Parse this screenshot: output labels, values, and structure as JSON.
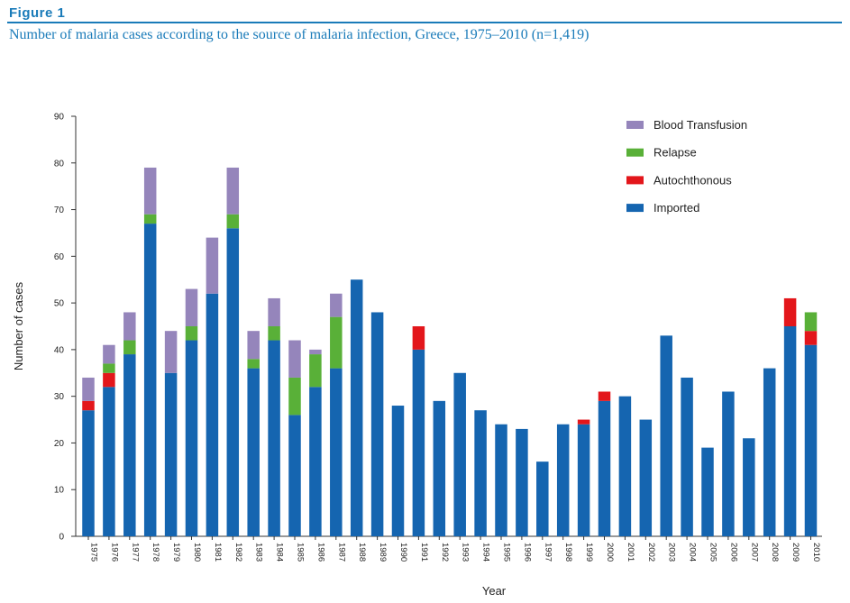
{
  "figure": {
    "label": "Figure 1",
    "title": "Number of malaria cases according to the source of malaria infection, Greece, 1975–2010 (n=1,419)"
  },
  "chart_data": {
    "type": "bar",
    "stacked": true,
    "xlabel": "Year",
    "ylabel": "Number of cases",
    "ylim": [
      0,
      90
    ],
    "yticks": [
      0,
      10,
      20,
      30,
      40,
      50,
      60,
      70,
      80,
      90
    ],
    "grid": false,
    "legend_position": "top-right",
    "categories": [
      "1975",
      "1976",
      "1977",
      "1978",
      "1979",
      "1980",
      "1981",
      "1982",
      "1983",
      "1984",
      "1985",
      "1986",
      "1987",
      "1988",
      "1989",
      "1990",
      "1991",
      "1992",
      "1993",
      "1994",
      "1995",
      "1996",
      "1997",
      "1998",
      "1999",
      "2000",
      "2001",
      "2002",
      "2003",
      "2004",
      "2005",
      "2006",
      "2007",
      "2008",
      "2009",
      "2010"
    ],
    "series": [
      {
        "name": "Imported",
        "color": "#1565b0",
        "values": [
          27,
          32,
          39,
          67,
          35,
          42,
          52,
          66,
          36,
          42,
          26,
          32,
          36,
          55,
          48,
          28,
          40,
          29,
          35,
          27,
          24,
          23,
          16,
          24,
          24,
          29,
          30,
          25,
          43,
          34,
          19,
          31,
          21,
          36,
          45,
          41
        ]
      },
      {
        "name": "Autochthonous",
        "color": "#e3161b",
        "values": [
          2,
          3,
          0,
          0,
          0,
          0,
          0,
          0,
          0,
          0,
          0,
          0,
          0,
          0,
          0,
          0,
          5,
          0,
          0,
          0,
          0,
          0,
          0,
          0,
          1,
          2,
          0,
          0,
          0,
          0,
          0,
          0,
          0,
          0,
          6,
          3
        ]
      },
      {
        "name": "Relapse",
        "color": "#59b038",
        "values": [
          0,
          2,
          3,
          2,
          0,
          3,
          0,
          3,
          2,
          3,
          8,
          7,
          11,
          0,
          0,
          0,
          0,
          0,
          0,
          0,
          0,
          0,
          0,
          0,
          0,
          0,
          0,
          0,
          0,
          0,
          0,
          0,
          0,
          0,
          0,
          4
        ]
      },
      {
        "name": "Blood Transfusion",
        "color": "#9585bb",
        "values": [
          5,
          4,
          6,
          10,
          9,
          8,
          12,
          10,
          6,
          6,
          8,
          1,
          5,
          0,
          0,
          0,
          0,
          0,
          0,
          0,
          0,
          0,
          0,
          0,
          0,
          0,
          0,
          0,
          0,
          0,
          0,
          0,
          0,
          0,
          0,
          0
        ]
      }
    ],
    "legend_order": [
      "Blood Transfusion",
      "Relapse",
      "Autochthonous",
      "Imported"
    ]
  }
}
